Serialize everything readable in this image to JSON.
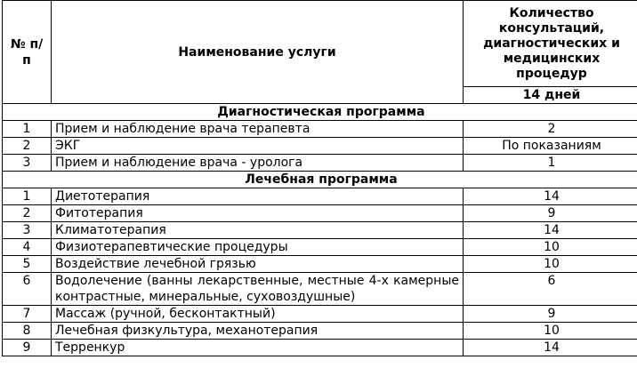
{
  "header": {
    "number": "№ п/п",
    "name": "Наименование услуги",
    "count": "Количество консультаций, диагностических и медицинских процедур",
    "period": "14 дней"
  },
  "sections": [
    {
      "title": "Диагностическая программа",
      "rows": [
        [
          1,
          "Прием и наблюдение врача терапевта",
          2
        ],
        [
          2,
          "ЭКГ",
          "По показаниям"
        ],
        [
          3,
          "Прием и наблюдение врача - уролога",
          1
        ]
      ]
    },
    {
      "title": "Лечебная программа",
      "rows": [
        [
          1,
          "Диетотерапия",
          14
        ],
        [
          2,
          "Фитотерапия",
          9
        ],
        [
          3,
          "Климатотерапия",
          14
        ],
        [
          4,
          "Физиотерапевтические процедуры",
          10
        ],
        [
          5,
          "Воздействие лечебной грязью",
          10
        ],
        [
          6,
          "Водолечение (ванны лекарственные, местные 4-х камерные контрастные, минеральные, суховоздушные)",
          6
        ],
        [
          7,
          "Массаж (ручной, бесконтактный)",
          9
        ],
        [
          8,
          "Лечебная физкультура, механотерапия",
          10
        ],
        [
          9,
          "Терренкур",
          14
        ]
      ]
    }
  ]
}
